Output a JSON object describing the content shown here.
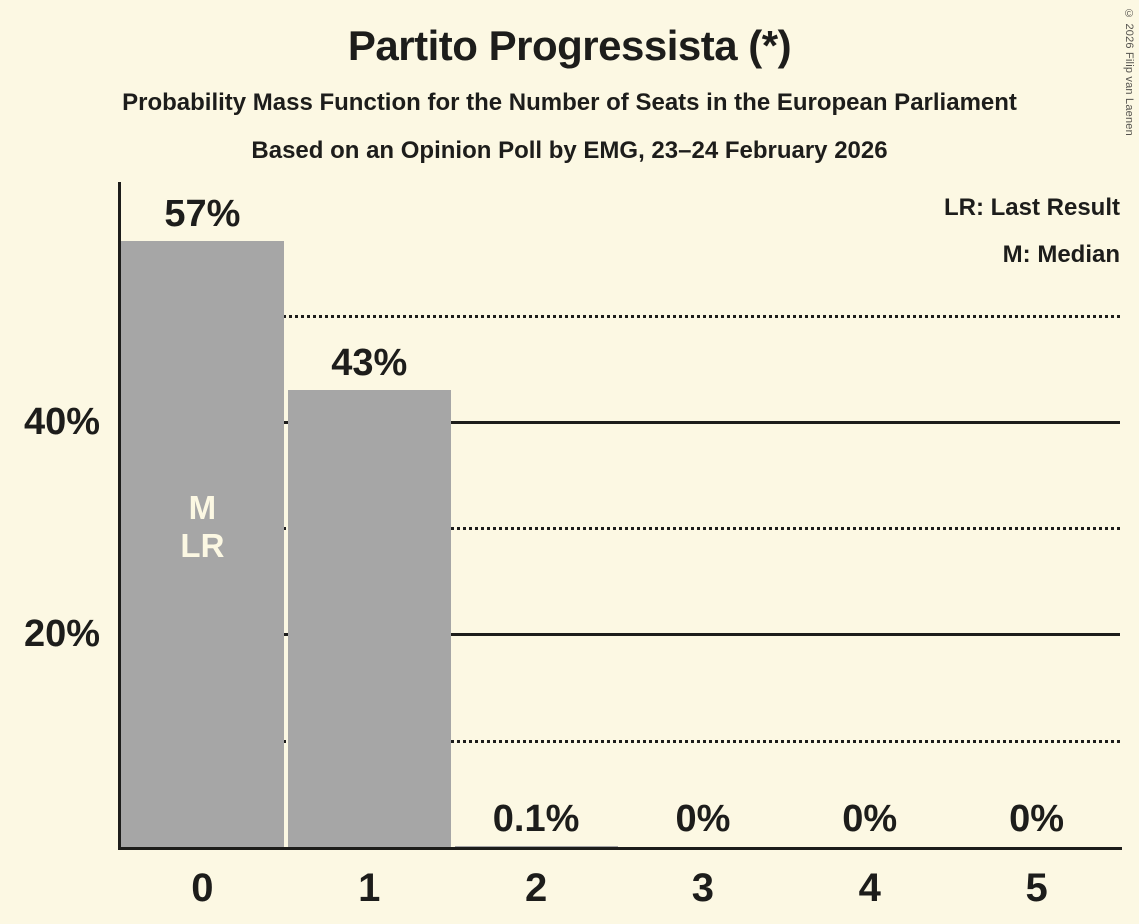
{
  "title": "Partito Progressista (*)",
  "subtitle_line1": "Probability Mass Function for the Number of Seats in the European Parliament",
  "subtitle_line2": "Based on an Opinion Poll by EMG, 23–24 February 2026",
  "copyright": "© 2026 Filip van Laenen",
  "legend": {
    "lr_label": "LR: Last Result",
    "m_label": "M: Median"
  },
  "colors": {
    "background": "#FCF8E3",
    "bar": "#A6A6A6",
    "text": "#1D1D1B",
    "copyright": "#55534E"
  },
  "chart_data": {
    "type": "bar",
    "title": "Partito Progressista (*)",
    "categories": [
      "0",
      "1",
      "2",
      "3",
      "4",
      "5"
    ],
    "values": [
      57,
      43,
      0.1,
      0,
      0,
      0
    ],
    "bar_labels": [
      "57%",
      "43%",
      "0.1%",
      "0%",
      "0%",
      "0%"
    ],
    "y_tick_labels": [
      {
        "pct": 20,
        "label": "20%"
      },
      {
        "pct": 40,
        "label": "40%"
      }
    ],
    "solid_gridlines_pct": [
      20,
      40
    ],
    "dotted_gridlines_pct": [
      10,
      30,
      50
    ],
    "ylim": [
      0,
      63
    ],
    "grid": true,
    "legend_position": "top-right",
    "annotations": [
      {
        "bar_index": 0,
        "lines": [
          "M",
          "LR"
        ]
      }
    ]
  }
}
